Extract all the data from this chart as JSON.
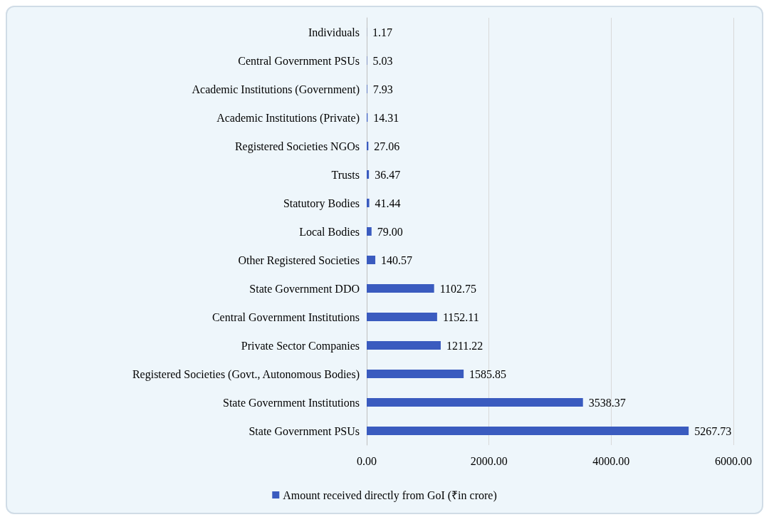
{
  "chart_data": {
    "type": "bar",
    "orientation": "horizontal",
    "categories": [
      "Individuals",
      "Central Government PSUs",
      "Academic Institutions (Government)",
      "Academic Institutions (Private)",
      "Registered Societies NGOs",
      "Trusts",
      "Statutory Bodies",
      "Local Bodies",
      "Other Registered Societies",
      "State Government DDO",
      "Central Government Institutions",
      "Private Sector Companies",
      "Registered Societies (Govt., Autonomous Bodies)",
      "State Government Institutions",
      "State Government PSUs"
    ],
    "series": [
      {
        "name": "Amount received directly from GoI (₹in crore)",
        "color": "#3a5bbf",
        "values": [
          1.17,
          5.03,
          7.93,
          14.31,
          27.06,
          36.47,
          41.44,
          79.0,
          140.57,
          1102.75,
          1152.11,
          1211.22,
          1585.85,
          3538.37,
          5267.73
        ],
        "value_labels": [
          "1.17",
          "5.03",
          "7.93",
          "14.31",
          "27.06",
          "36.47",
          "41.44",
          "79.00",
          "140.57",
          "1102.75",
          "1152.11",
          "1211.22",
          "1585.85",
          "3538.37",
          "5267.73"
        ]
      }
    ],
    "xlim": [
      0,
      6000
    ],
    "xticks": [
      {
        "value": 0,
        "label": "0.00"
      },
      {
        "value": 2000,
        "label": "2000.00"
      },
      {
        "value": 4000,
        "label": "4000.00"
      },
      {
        "value": 6000,
        "label": "6000.00"
      }
    ],
    "grid": "x",
    "legend": "bottom"
  }
}
